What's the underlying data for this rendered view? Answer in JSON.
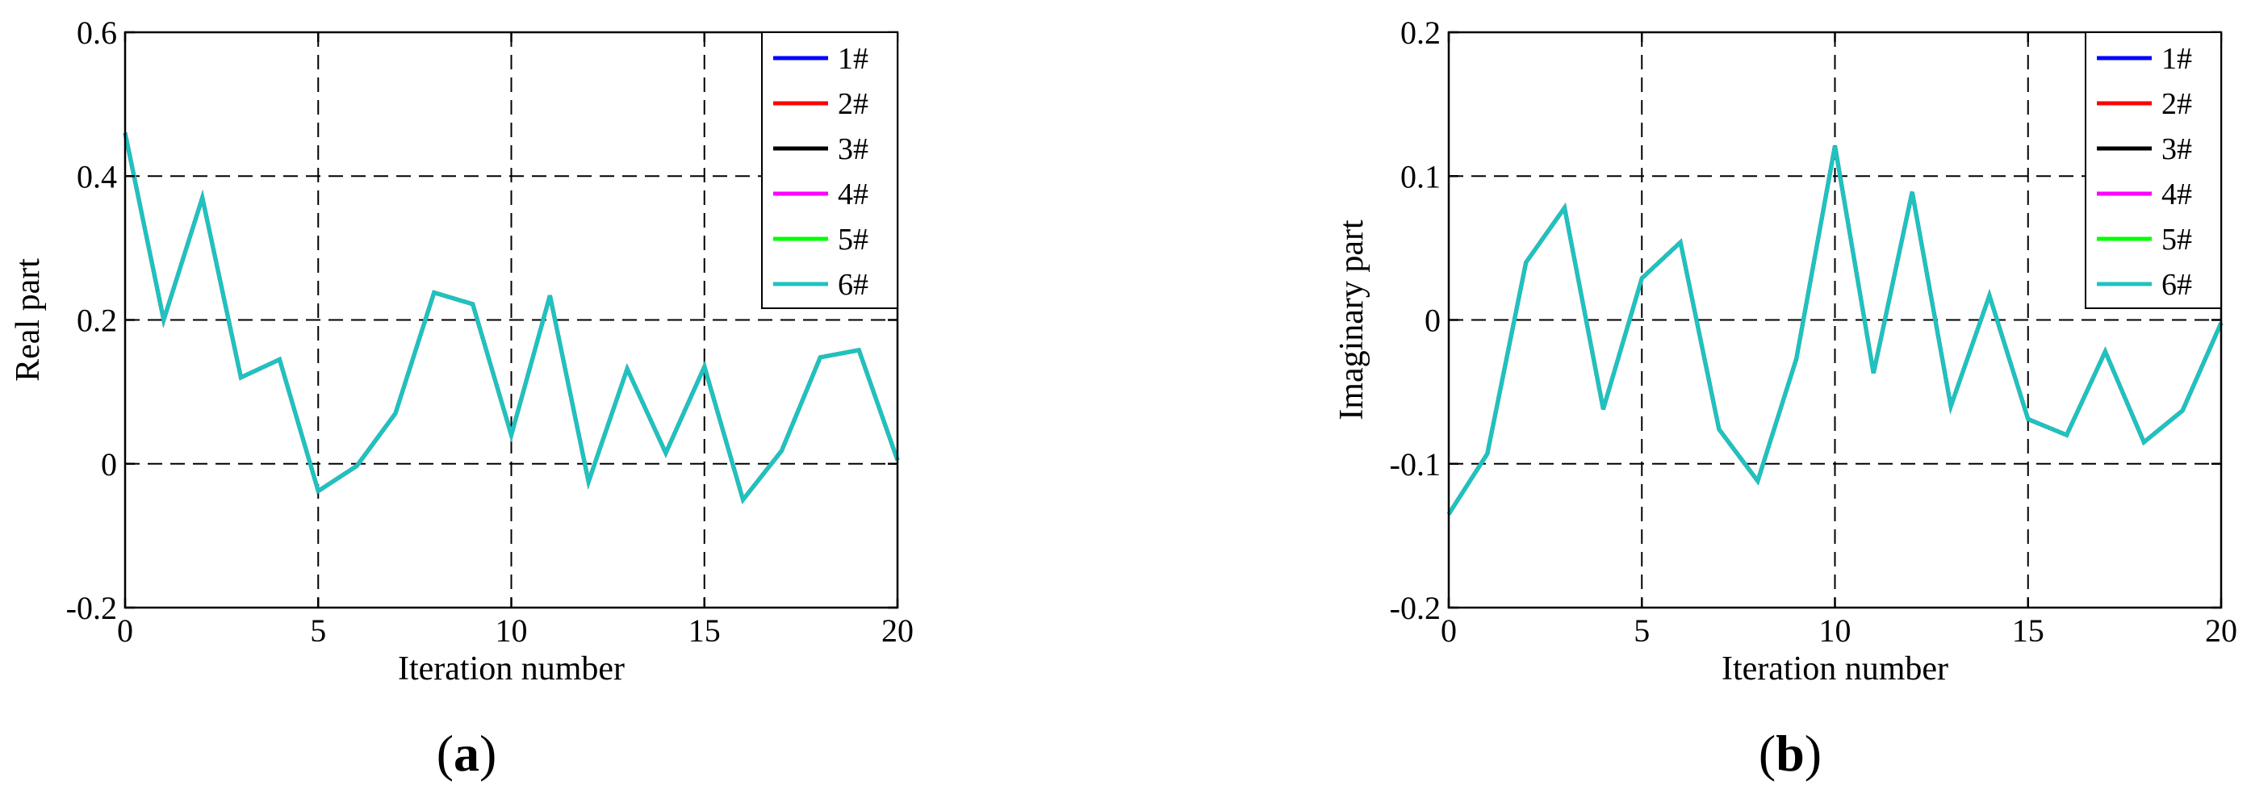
{
  "chart_data": [
    {
      "type": "line",
      "panel_label": "(a)",
      "panel_letter": "a",
      "xlabel": "Iteration number",
      "ylabel": "Real part",
      "xlim": [
        0,
        20
      ],
      "ylim": [
        -0.2,
        0.6
      ],
      "x_ticks": [
        0,
        5,
        10,
        15,
        20
      ],
      "x_tick_labels": [
        "0",
        "5",
        "10",
        "15",
        "20"
      ],
      "y_ticks": [
        -0.2,
        0,
        0.2,
        0.4,
        0.6
      ],
      "y_tick_labels": [
        "-0.2",
        "0",
        "0.2",
        "0.4",
        "0.6"
      ],
      "grid": true,
      "legend_position": "top-right",
      "x": [
        0,
        1,
        2,
        3,
        4,
        5,
        6,
        7,
        8,
        9,
        10,
        11,
        12,
        13,
        14,
        15,
        16,
        17,
        18,
        19,
        20
      ],
      "series": [
        {
          "name": "1#",
          "color": "#0000ff",
          "values": [
            0.46,
            0.2,
            0.37,
            0.12,
            0.145,
            -0.038,
            -0.003,
            0.07,
            0.238,
            0.222,
            0.04,
            0.234,
            -0.025,
            0.132,
            0.015,
            0.135,
            -0.05,
            0.018,
            0.148,
            0.158,
            0.005
          ]
        },
        {
          "name": "2#",
          "color": "#ff0000",
          "values": [
            0.46,
            0.2,
            0.37,
            0.12,
            0.145,
            -0.038,
            -0.003,
            0.07,
            0.238,
            0.222,
            0.04,
            0.234,
            -0.025,
            0.132,
            0.015,
            0.135,
            -0.05,
            0.018,
            0.148,
            0.158,
            0.005
          ]
        },
        {
          "name": "3#",
          "color": "#000000",
          "values": [
            0.46,
            0.2,
            0.37,
            0.12,
            0.145,
            -0.038,
            -0.003,
            0.07,
            0.238,
            0.222,
            0.04,
            0.234,
            -0.025,
            0.132,
            0.015,
            0.135,
            -0.05,
            0.018,
            0.148,
            0.158,
            0.005
          ]
        },
        {
          "name": "4#",
          "color": "#ff00ff",
          "values": [
            0.46,
            0.2,
            0.37,
            0.12,
            0.145,
            -0.038,
            -0.003,
            0.07,
            0.238,
            0.222,
            0.04,
            0.234,
            -0.025,
            0.132,
            0.015,
            0.135,
            -0.05,
            0.018,
            0.148,
            0.158,
            0.005
          ]
        },
        {
          "name": "5#",
          "color": "#00ff00",
          "values": [
            0.46,
            0.2,
            0.37,
            0.12,
            0.145,
            -0.038,
            -0.003,
            0.07,
            0.238,
            0.222,
            0.04,
            0.234,
            -0.025,
            0.132,
            0.015,
            0.135,
            -0.05,
            0.018,
            0.148,
            0.158,
            0.005
          ]
        },
        {
          "name": "6#",
          "color": "#1ec2c2",
          "values": [
            0.46,
            0.2,
            0.37,
            0.12,
            0.145,
            -0.038,
            -0.003,
            0.07,
            0.238,
            0.222,
            0.04,
            0.234,
            -0.025,
            0.132,
            0.015,
            0.135,
            -0.05,
            0.018,
            0.148,
            0.158,
            0.005
          ]
        }
      ]
    },
    {
      "type": "line",
      "panel_label": "(b)",
      "panel_letter": "b",
      "xlabel": "Iteration number",
      "ylabel": "Imaginary part",
      "xlim": [
        0,
        20
      ],
      "ylim": [
        -0.2,
        0.2
      ],
      "x_ticks": [
        0,
        5,
        10,
        15,
        20
      ],
      "x_tick_labels": [
        "0",
        "5",
        "10",
        "15",
        "20"
      ],
      "y_ticks": [
        -0.2,
        -0.1,
        0,
        0.1,
        0.2
      ],
      "y_tick_labels": [
        "-0.2",
        "-0.1",
        "0",
        "0.1",
        "0.2"
      ],
      "grid": true,
      "legend_position": "top-right",
      "x": [
        0,
        1,
        2,
        3,
        4,
        5,
        6,
        7,
        8,
        9,
        10,
        11,
        12,
        13,
        14,
        15,
        16,
        17,
        18,
        19,
        20
      ],
      "series": [
        {
          "name": "1#",
          "color": "#0000ff",
          "values": [
            -0.135,
            -0.093,
            0.04,
            0.078,
            -0.062,
            0.029,
            0.054,
            -0.076,
            -0.112,
            -0.027,
            0.121,
            -0.037,
            0.089,
            -0.06,
            0.017,
            -0.069,
            -0.08,
            -0.022,
            -0.085,
            -0.063,
            -0.002
          ]
        },
        {
          "name": "2#",
          "color": "#ff0000",
          "values": [
            -0.135,
            -0.093,
            0.04,
            0.078,
            -0.062,
            0.029,
            0.054,
            -0.076,
            -0.112,
            -0.027,
            0.121,
            -0.037,
            0.089,
            -0.06,
            0.017,
            -0.069,
            -0.08,
            -0.022,
            -0.085,
            -0.063,
            -0.002
          ]
        },
        {
          "name": "3#",
          "color": "#000000",
          "values": [
            -0.135,
            -0.093,
            0.04,
            0.078,
            -0.062,
            0.029,
            0.054,
            -0.076,
            -0.112,
            -0.027,
            0.121,
            -0.037,
            0.089,
            -0.06,
            0.017,
            -0.069,
            -0.08,
            -0.022,
            -0.085,
            -0.063,
            -0.002
          ]
        },
        {
          "name": "4#",
          "color": "#ff00ff",
          "values": [
            -0.135,
            -0.093,
            0.04,
            0.078,
            -0.062,
            0.029,
            0.054,
            -0.076,
            -0.112,
            -0.027,
            0.121,
            -0.037,
            0.089,
            -0.06,
            0.017,
            -0.069,
            -0.08,
            -0.022,
            -0.085,
            -0.063,
            -0.002
          ]
        },
        {
          "name": "5#",
          "color": "#00ff00",
          "values": [
            -0.135,
            -0.093,
            0.04,
            0.078,
            -0.062,
            0.029,
            0.054,
            -0.076,
            -0.112,
            -0.027,
            0.121,
            -0.037,
            0.089,
            -0.06,
            0.017,
            -0.069,
            -0.08,
            -0.022,
            -0.085,
            -0.063,
            -0.002
          ]
        },
        {
          "name": "6#",
          "color": "#1ec2c2",
          "values": [
            -0.135,
            -0.093,
            0.04,
            0.078,
            -0.062,
            0.029,
            0.054,
            -0.076,
            -0.112,
            -0.027,
            0.121,
            -0.037,
            0.089,
            -0.06,
            0.017,
            -0.069,
            -0.08,
            -0.022,
            -0.085,
            -0.063,
            -0.002
          ]
        }
      ]
    }
  ]
}
